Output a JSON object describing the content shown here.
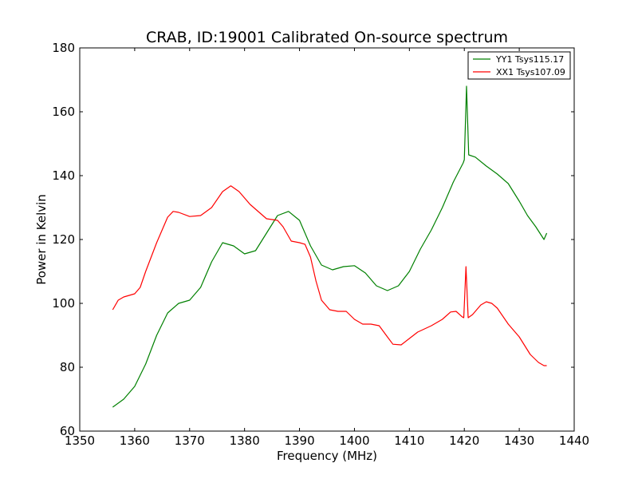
{
  "chart_data": {
    "type": "line",
    "title": "CRAB, ID:19001 Calibrated On-source spectrum",
    "xlabel": "Frequency (MHz)",
    "ylabel": "Power in Kelvin",
    "xlim": [
      1350,
      1440
    ],
    "ylim": [
      60,
      180
    ],
    "xticks": [
      1350,
      1360,
      1370,
      1380,
      1390,
      1400,
      1410,
      1420,
      1430,
      1440
    ],
    "yticks": [
      60,
      80,
      100,
      120,
      140,
      160,
      180
    ],
    "grid": false,
    "legend_position": "top-right",
    "series": [
      {
        "name": "YY1 Tsys115.17",
        "color": "#008000",
        "points": [
          [
            1356.0,
            67.5
          ],
          [
            1358.0,
            70.0
          ],
          [
            1360.0,
            74.0
          ],
          [
            1362.0,
            81.0
          ],
          [
            1364.0,
            90.0
          ],
          [
            1366.0,
            97.0
          ],
          [
            1368.0,
            100.0
          ],
          [
            1370.0,
            101.0
          ],
          [
            1372.0,
            105.0
          ],
          [
            1374.0,
            113.0
          ],
          [
            1376.0,
            119.0
          ],
          [
            1378.0,
            118.0
          ],
          [
            1380.0,
            115.5
          ],
          [
            1382.0,
            116.5
          ],
          [
            1384.0,
            122.0
          ],
          [
            1386.0,
            127.5
          ],
          [
            1388.0,
            128.8
          ],
          [
            1390.0,
            126.0
          ],
          [
            1392.0,
            118.0
          ],
          [
            1394.0,
            112.0
          ],
          [
            1396.0,
            110.5
          ],
          [
            1398.0,
            111.5
          ],
          [
            1400.0,
            111.8
          ],
          [
            1402.0,
            109.5
          ],
          [
            1404.0,
            105.5
          ],
          [
            1406.0,
            104.0
          ],
          [
            1408.0,
            105.5
          ],
          [
            1410.0,
            110.0
          ],
          [
            1412.0,
            117.0
          ],
          [
            1414.0,
            123.0
          ],
          [
            1416.0,
            130.0
          ],
          [
            1418.0,
            138.0
          ],
          [
            1419.8,
            144.0
          ],
          [
            1420.0,
            145.0
          ],
          [
            1420.4,
            168.0
          ],
          [
            1420.8,
            146.5
          ],
          [
            1422.0,
            145.8
          ],
          [
            1424.0,
            143.0
          ],
          [
            1426.0,
            140.5
          ],
          [
            1428.0,
            137.5
          ],
          [
            1430.0,
            132.0
          ],
          [
            1431.5,
            127.5
          ],
          [
            1433.0,
            124.0
          ],
          [
            1434.5,
            120.0
          ],
          [
            1435.0,
            122.0
          ]
        ]
      },
      {
        "name": "XX1 Tsys107.09",
        "color": "#ff0000",
        "points": [
          [
            1356.0,
            98.0
          ],
          [
            1357.0,
            101.0
          ],
          [
            1358.0,
            102.0
          ],
          [
            1360.0,
            103.0
          ],
          [
            1361.0,
            105.0
          ],
          [
            1362.0,
            110.0
          ],
          [
            1364.0,
            119.0
          ],
          [
            1366.0,
            127.0
          ],
          [
            1367.0,
            128.8
          ],
          [
            1368.0,
            128.5
          ],
          [
            1370.0,
            127.2
          ],
          [
            1372.0,
            127.5
          ],
          [
            1374.0,
            130.0
          ],
          [
            1376.0,
            135.0
          ],
          [
            1377.5,
            136.8
          ],
          [
            1379.0,
            135.0
          ],
          [
            1381.0,
            131.0
          ],
          [
            1383.0,
            128.0
          ],
          [
            1384.0,
            126.5
          ],
          [
            1386.0,
            126.0
          ],
          [
            1387.0,
            124.0
          ],
          [
            1388.5,
            119.5
          ],
          [
            1390.0,
            119.0
          ],
          [
            1391.0,
            118.5
          ],
          [
            1392.0,
            114.5
          ],
          [
            1393.0,
            107.0
          ],
          [
            1394.0,
            101.0
          ],
          [
            1395.5,
            98.0
          ],
          [
            1397.0,
            97.5
          ],
          [
            1398.5,
            97.5
          ],
          [
            1400.0,
            95.0
          ],
          [
            1401.5,
            93.5
          ],
          [
            1403.0,
            93.5
          ],
          [
            1404.5,
            93.0
          ],
          [
            1406.0,
            89.5
          ],
          [
            1407.0,
            87.2
          ],
          [
            1408.5,
            87.0
          ],
          [
            1410.0,
            89.0
          ],
          [
            1411.5,
            91.0
          ],
          [
            1414.0,
            93.0
          ],
          [
            1416.0,
            95.0
          ],
          [
            1417.5,
            97.3
          ],
          [
            1418.5,
            97.5
          ],
          [
            1419.6,
            95.8
          ],
          [
            1419.9,
            95.5
          ],
          [
            1420.3,
            111.5
          ],
          [
            1420.7,
            95.5
          ],
          [
            1421.5,
            96.5
          ],
          [
            1423.0,
            99.5
          ],
          [
            1424.0,
            100.5
          ],
          [
            1425.0,
            100.0
          ],
          [
            1426.0,
            98.5
          ],
          [
            1428.0,
            93.5
          ],
          [
            1430.0,
            89.5
          ],
          [
            1432.0,
            84.0
          ],
          [
            1433.5,
            81.5
          ],
          [
            1434.5,
            80.5
          ],
          [
            1435.0,
            80.5
          ]
        ]
      }
    ]
  }
}
